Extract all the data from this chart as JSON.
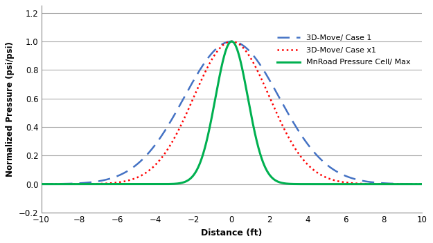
{
  "title": "",
  "xlabel": "Distance (ft)",
  "ylabel": "Normalized Pressure (psi/psi)",
  "xlim": [
    -10,
    10
  ],
  "ylim": [
    -0.2,
    1.25
  ],
  "xticks": [
    -10,
    -8,
    -6,
    -4,
    -2,
    0,
    2,
    4,
    6,
    8,
    10
  ],
  "yticks": [
    -0.2,
    0,
    0.2,
    0.4,
    0.6,
    0.8,
    1.0,
    1.2
  ],
  "case1_color": "#4472C4",
  "casex1_color": "#FF0000",
  "mnroad_color": "#00B050",
  "case1_sigma": 2.5,
  "casex1_sigma": 2.0,
  "mnroad_sigma": 0.85,
  "background_color": "#ffffff",
  "legend_labels": [
    "3D-Move/ Case 1",
    "3D-Move/ Case x1",
    "MnRoad Pressure Cell/ Max"
  ],
  "grid_color": "#aaaaaa",
  "grid_linewidth": 0.8
}
